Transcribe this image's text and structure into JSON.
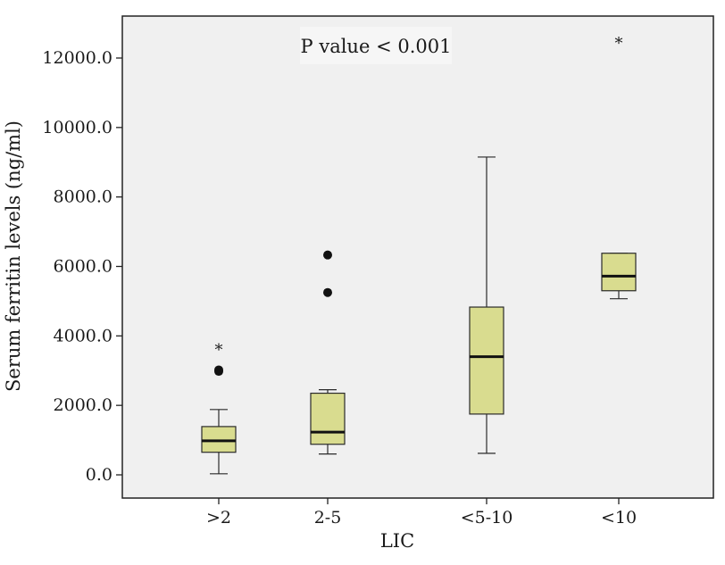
{
  "chart_data": {
    "type": "box",
    "title": "",
    "annotation": "P value < 0.001",
    "xlabel": "LIC",
    "ylabel": "Serum ferritin levels (ng/ml)",
    "ylim": [
      -650,
      13000
    ],
    "yticks": [
      0,
      2000,
      4000,
      6000,
      8000,
      10000,
      12000
    ],
    "ytick_labels": [
      "0.0",
      "2000.0",
      "4000.0",
      "6000.0",
      "8000.0",
      "10000.0",
      "12000.0"
    ],
    "categories": [
      ">2",
      "2-5",
      "<5-10",
      "<10"
    ],
    "boxes": [
      {
        "category": ">2",
        "whisker_low": 30,
        "q1": 650,
        "median": 980,
        "q3": 1390,
        "whisker_high": 1880,
        "outliers": [
          {
            "value": 2980,
            "marker": "circle"
          },
          {
            "value": 3020,
            "marker": "circle"
          }
        ],
        "extremes": [
          {
            "value": 3650,
            "marker": "star"
          }
        ]
      },
      {
        "category": "2-5",
        "whisker_low": 600,
        "q1": 880,
        "median": 1230,
        "q3": 2350,
        "whisker_high": 2450,
        "outliers": [
          {
            "value": 5250,
            "marker": "circle"
          },
          {
            "value": 6330,
            "marker": "circle"
          }
        ],
        "extremes": []
      },
      {
        "category": "<5-10",
        "whisker_low": 620,
        "q1": 1750,
        "median": 3400,
        "q3": 4830,
        "whisker_high": 9150,
        "outliers": [],
        "extremes": []
      },
      {
        "category": "<10",
        "whisker_low": 5070,
        "q1": 5300,
        "median": 5720,
        "q3": 6380,
        "whisker_high": 6380,
        "outliers": [],
        "extremes": [
          {
            "value": 12480,
            "marker": "star"
          }
        ]
      }
    ],
    "colors": {
      "box_fill": "#d9dc8f",
      "box_stroke": "#2a2a2a",
      "plot_bg": "#f0f0f0"
    },
    "grid": false,
    "legend": "none"
  }
}
